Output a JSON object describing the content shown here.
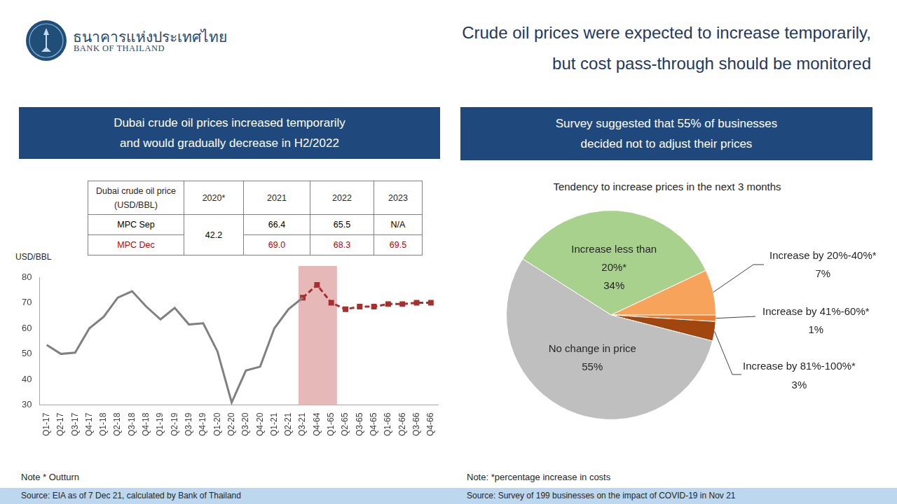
{
  "header": {
    "bank_name": [
      "ธนาคารแห่งประเทศไทย",
      "BANK OF THAILAND"
    ],
    "title": [
      "Crude oil prices were expected to increase temporarily,",
      "but cost pass-through should be monitored"
    ]
  },
  "left_panel": {
    "heading": [
      "Dubai crude oil prices increased temporarily",
      "and would gradually decrease in H2/2022"
    ],
    "table": {
      "header": [
        [
          "Dubai crude oil price",
          "(USD/BBL)"
        ],
        "2020*",
        "2021",
        "2022",
        "2023"
      ],
      "rows": [
        {
          "cells": [
            "MPC Sep",
            "42.2",
            "66.4",
            "65.5",
            "N/A"
          ],
          "color": "#000000"
        },
        {
          "cells": [
            "MPC Dec",
            null,
            "69.0",
            "68.3",
            "69.5"
          ],
          "color": "#c00000"
        }
      ]
    },
    "note": "Note * Outturn",
    "source": "Source: EIA as of 7 Dec 21, calculated by Bank of Thailand"
  },
  "right_panel": {
    "heading": [
      "Survey suggested that 55% of businesses",
      "decided not to adjust their prices"
    ],
    "note": "Note: *percentage increase in costs",
    "source": "Source: Survey of 199 businesses on the impact of COVID-19 in Nov 21"
  },
  "chart_data": [
    {
      "type": "line",
      "y_label": "USD/BBL",
      "categories": [
        "Q1-17",
        "Q2-17",
        "Q3-17",
        "Q4-17",
        "Q1-18",
        "Q2-18",
        "Q3-18",
        "Q4-18",
        "Q1-19",
        "Q2-19",
        "Q3-19",
        "Q4-19",
        "Q1-20",
        "Q2-20",
        "Q3-20",
        "Q4-20",
        "Q1-21",
        "Q2-21",
        "Q3-21",
        "Q4-64",
        "Q1-65",
        "Q2-65",
        "Q3-65",
        "Q4-65",
        "Q1-66",
        "Q2-66",
        "Q3-66",
        "Q4-66"
      ],
      "series": [
        {
          "color": "#808080",
          "line_style": "solid",
          "marker": "none",
          "values": [
            53.5,
            50,
            50.5,
            60,
            64.5,
            72,
            74.5,
            68.5,
            63.5,
            68,
            61.5,
            62,
            51,
            31,
            43.5,
            45,
            60,
            67.5,
            72,
            null,
            null,
            null,
            null,
            null,
            null,
            null,
            null,
            null
          ]
        },
        {
          "color": "#a5302d",
          "line_style": "dashed",
          "marker": "square",
          "values": [
            null,
            null,
            null,
            null,
            null,
            null,
            null,
            null,
            null,
            null,
            null,
            null,
            null,
            null,
            null,
            null,
            null,
            null,
            72,
            77,
            70,
            67.5,
            68.5,
            68.5,
            69.5,
            69.5,
            70,
            70
          ]
        }
      ],
      "ylim": [
        30,
        80
      ],
      "yticks": [
        30,
        40,
        50,
        60,
        70,
        80
      ],
      "grid": false,
      "annotations": [
        {
          "type": "band",
          "from": "Q3-21",
          "to": "Q1-65",
          "color": "#e6b8b7"
        }
      ]
    },
    {
      "type": "pie",
      "title": "Tendency to increase prices in the next 3 months",
      "categories": [
        "Increase less than 20%*",
        "Increase by 20%-40%*",
        "Increase by 41%-60%*",
        "Increase by 81%-100%*",
        "No change in price"
      ],
      "values": [
        34,
        7,
        1,
        3,
        55
      ],
      "value_labels": [
        "34%",
        "7%",
        "1%",
        "3%",
        "55%"
      ],
      "colors": [
        "#a9d18e",
        "#f7a35c",
        "#ed7d31",
        "#a0460e",
        "#bfbfbf"
      ],
      "data_labels": true
    }
  ]
}
